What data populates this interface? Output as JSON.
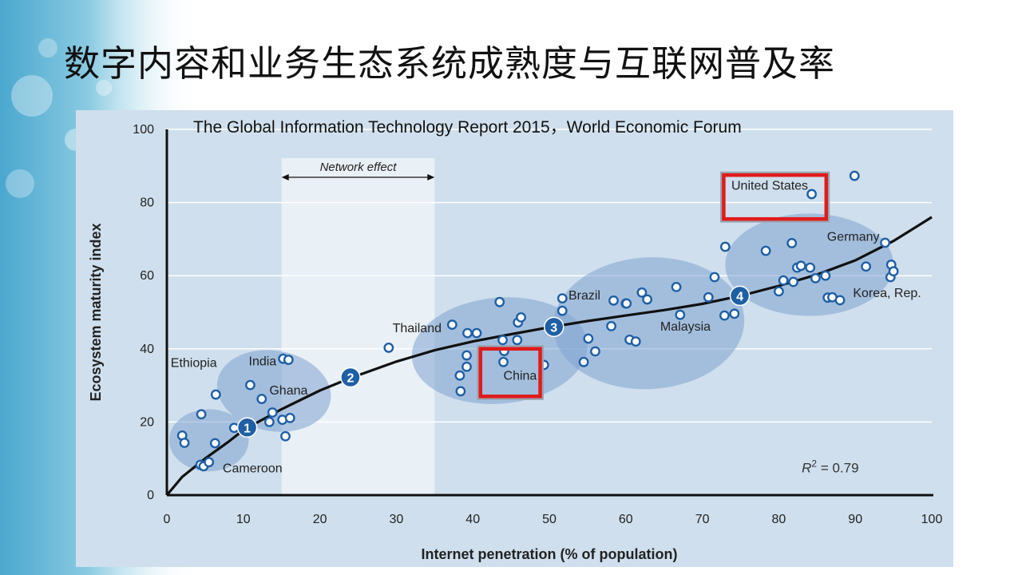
{
  "slide": {
    "title": "数字内容和业务生态系统成熟度与互联网普及率",
    "source": "The Global Information Technology Report 2015，World Economic Forum"
  },
  "colors": {
    "panel": "#cfdfed",
    "cluster": "#7fa3cf",
    "point_fill": "#ffffff",
    "point_stroke": "#1f5fa5",
    "marker": "#1f5fa5",
    "highlight": "#e01b1b",
    "network_band": "#e9f0f6"
  },
  "chart_data": {
    "type": "scatter",
    "xlabel": "Internet penetration (% of population)",
    "ylabel": "Ecosystem maturity index",
    "xlim": [
      0,
      100
    ],
    "ylim": [
      0,
      100
    ],
    "xticks": [
      "0",
      "10",
      "20",
      "30",
      "40",
      "50",
      "60",
      "70",
      "80",
      "90",
      "100"
    ],
    "yticks": [
      "0",
      "20",
      "40",
      "60",
      "80",
      "100"
    ],
    "grid": "horizontal",
    "points": [
      [
        2,
        16.3
      ],
      [
        2.3,
        14.3
      ],
      [
        4.5,
        22.1
      ],
      [
        4.4,
        8.3
      ],
      [
        4.8,
        7.9
      ],
      [
        5.5,
        9.0
      ],
      [
        6.3,
        14.2
      ],
      [
        6.4,
        27.5
      ],
      [
        8.8,
        18.4
      ],
      [
        10.9,
        30.1
      ],
      [
        12.4,
        26.3
      ],
      [
        13.8,
        22.6
      ],
      [
        13.4,
        20.0
      ],
      [
        15.1,
        20.6
      ],
      [
        15.5,
        16.1
      ],
      [
        16.1,
        21.1
      ],
      [
        15.2,
        37.3
      ],
      [
        15.9,
        37.0
      ],
      [
        29,
        40.3
      ],
      [
        37.3,
        46.6
      ],
      [
        38.3,
        32.7
      ],
      [
        38.4,
        28.4
      ],
      [
        39.2,
        38.2
      ],
      [
        39.2,
        35.1
      ],
      [
        39.3,
        44.3
      ],
      [
        40.5,
        44.3
      ],
      [
        43.5,
        52.8
      ],
      [
        43.9,
        42.4
      ],
      [
        44.0,
        36.4
      ],
      [
        44.1,
        39.4
      ],
      [
        45.8,
        42.4
      ],
      [
        45.9,
        47.2
      ],
      [
        46.3,
        48.6
      ],
      [
        49.3,
        35.6
      ],
      [
        51.7,
        53.8
      ],
      [
        51.7,
        50.4
      ],
      [
        54.5,
        36.4
      ],
      [
        55.1,
        42.8
      ],
      [
        56.0,
        39.3
      ],
      [
        58.1,
        46.2
      ],
      [
        58.4,
        53.2
      ],
      [
        60.0,
        52.4
      ],
      [
        60.1,
        52.4
      ],
      [
        60.5,
        42.5
      ],
      [
        61.3,
        42.0
      ],
      [
        62.1,
        55.4
      ],
      [
        62.8,
        53.5
      ],
      [
        66.6,
        56.9
      ],
      [
        67.1,
        49.3
      ],
      [
        70.8,
        54.1
      ],
      [
        71.6,
        59.6
      ],
      [
        72.9,
        49.1
      ],
      [
        73.0,
        67.9
      ],
      [
        74.2,
        49.6
      ],
      [
        78.3,
        66.8
      ],
      [
        80.0,
        55.7
      ],
      [
        80.6,
        58.7
      ],
      [
        81.7,
        68.9
      ],
      [
        81.9,
        58.3
      ],
      [
        82.4,
        62.2
      ],
      [
        82.9,
        62.7
      ],
      [
        84.1,
        62.2
      ],
      [
        84.8,
        59.3
      ],
      [
        86.1,
        60.0
      ],
      [
        86.4,
        54.0
      ],
      [
        87.0,
        54.1
      ],
      [
        88.0,
        53.3
      ],
      [
        84.3,
        82.3
      ],
      [
        89.9,
        87.3
      ],
      [
        91.4,
        62.5
      ],
      [
        93.9,
        69.0
      ],
      [
        94.6,
        59.6
      ],
      [
        94.7,
        63.0
      ],
      [
        95.0,
        61.2
      ]
    ],
    "fit_curve": [
      [
        0,
        0
      ],
      [
        2,
        5
      ],
      [
        5,
        10
      ],
      [
        8,
        14.5
      ],
      [
        10,
        17.8
      ],
      [
        15,
        23.5
      ],
      [
        20,
        28.6
      ],
      [
        24,
        32
      ],
      [
        30,
        36.5
      ],
      [
        35,
        39.6
      ],
      [
        40,
        42
      ],
      [
        45,
        44
      ],
      [
        50,
        45.9
      ],
      [
        55,
        47.6
      ],
      [
        60,
        49.1
      ],
      [
        65,
        50.6
      ],
      [
        70,
        52.3
      ],
      [
        75,
        54.5
      ],
      [
        80,
        57.2
      ],
      [
        85,
        60.3
      ],
      [
        90,
        64.2
      ],
      [
        95,
        69.5
      ],
      [
        100,
        76
      ]
    ],
    "stage_markers": [
      {
        "label": "1",
        "x": 10.5,
        "y": 18.5
      },
      {
        "label": "2",
        "x": 24,
        "y": 32.2
      },
      {
        "label": "3",
        "x": 50.6,
        "y": 46
      },
      {
        "label": "4",
        "x": 74.9,
        "y": 54.5
      }
    ],
    "clusters": [
      {
        "cx": 5.5,
        "cy": 15,
        "rx": 5.2,
        "ry": 8.5,
        "angle": 0
      },
      {
        "cx": 14,
        "cy": 28.5,
        "rx": 7.5,
        "ry": 11,
        "angle": 10
      },
      {
        "cx": 43.5,
        "cy": 39.5,
        "rx": 11.5,
        "ry": 14.5,
        "angle": -5
      },
      {
        "cx": 63,
        "cy": 47,
        "rx": 12.5,
        "ry": 18,
        "angle": -3
      },
      {
        "cx": 84,
        "cy": 63,
        "rx": 11,
        "ry": 14,
        "angle": 0
      }
    ],
    "network_effect": {
      "label": "Network effect",
      "x_from": 15,
      "x_to": 35
    },
    "labels": [
      {
        "text": "Ethiopia",
        "x": 0.5,
        "y": 35,
        "anchor": "start"
      },
      {
        "text": "India",
        "x": 10.7,
        "y": 35.5,
        "anchor": "start"
      },
      {
        "text": "Ghana",
        "x": 13.4,
        "y": 27.5,
        "anchor": "start"
      },
      {
        "text": "Cameroon",
        "x": 7.3,
        "y": 6.2,
        "anchor": "start"
      },
      {
        "text": "Thailand",
        "x": 29.5,
        "y": 44.5,
        "anchor": "start"
      },
      {
        "text": "China",
        "x": 44.0,
        "y": 31.5,
        "anchor": "start"
      },
      {
        "text": "Brazil",
        "x": 52.5,
        "y": 53.5,
        "anchor": "start"
      },
      {
        "text": "Malaysia",
        "x": 64.5,
        "y": 45.0,
        "anchor": "start"
      },
      {
        "text": "United States",
        "x": 73.8,
        "y": 83.5,
        "anchor": "start"
      },
      {
        "text": "Germany",
        "x": 86.3,
        "y": 69.5,
        "anchor": "start"
      },
      {
        "text": "Korea, Rep.",
        "x": 89.7,
        "y": 54.2,
        "anchor": "start"
      }
    ],
    "highlights": [
      {
        "label": "United States",
        "x0": 72.8,
        "x1": 86.2,
        "y0": 75.5,
        "y1": 87.5
      },
      {
        "label": "China",
        "x0": 41,
        "x1": 48.8,
        "y0": 27,
        "y1": 40
      }
    ],
    "annotation": {
      "text": "R",
      "sup": "2",
      "rest": " = 0.79",
      "x": 83,
      "y": 6.2
    }
  }
}
